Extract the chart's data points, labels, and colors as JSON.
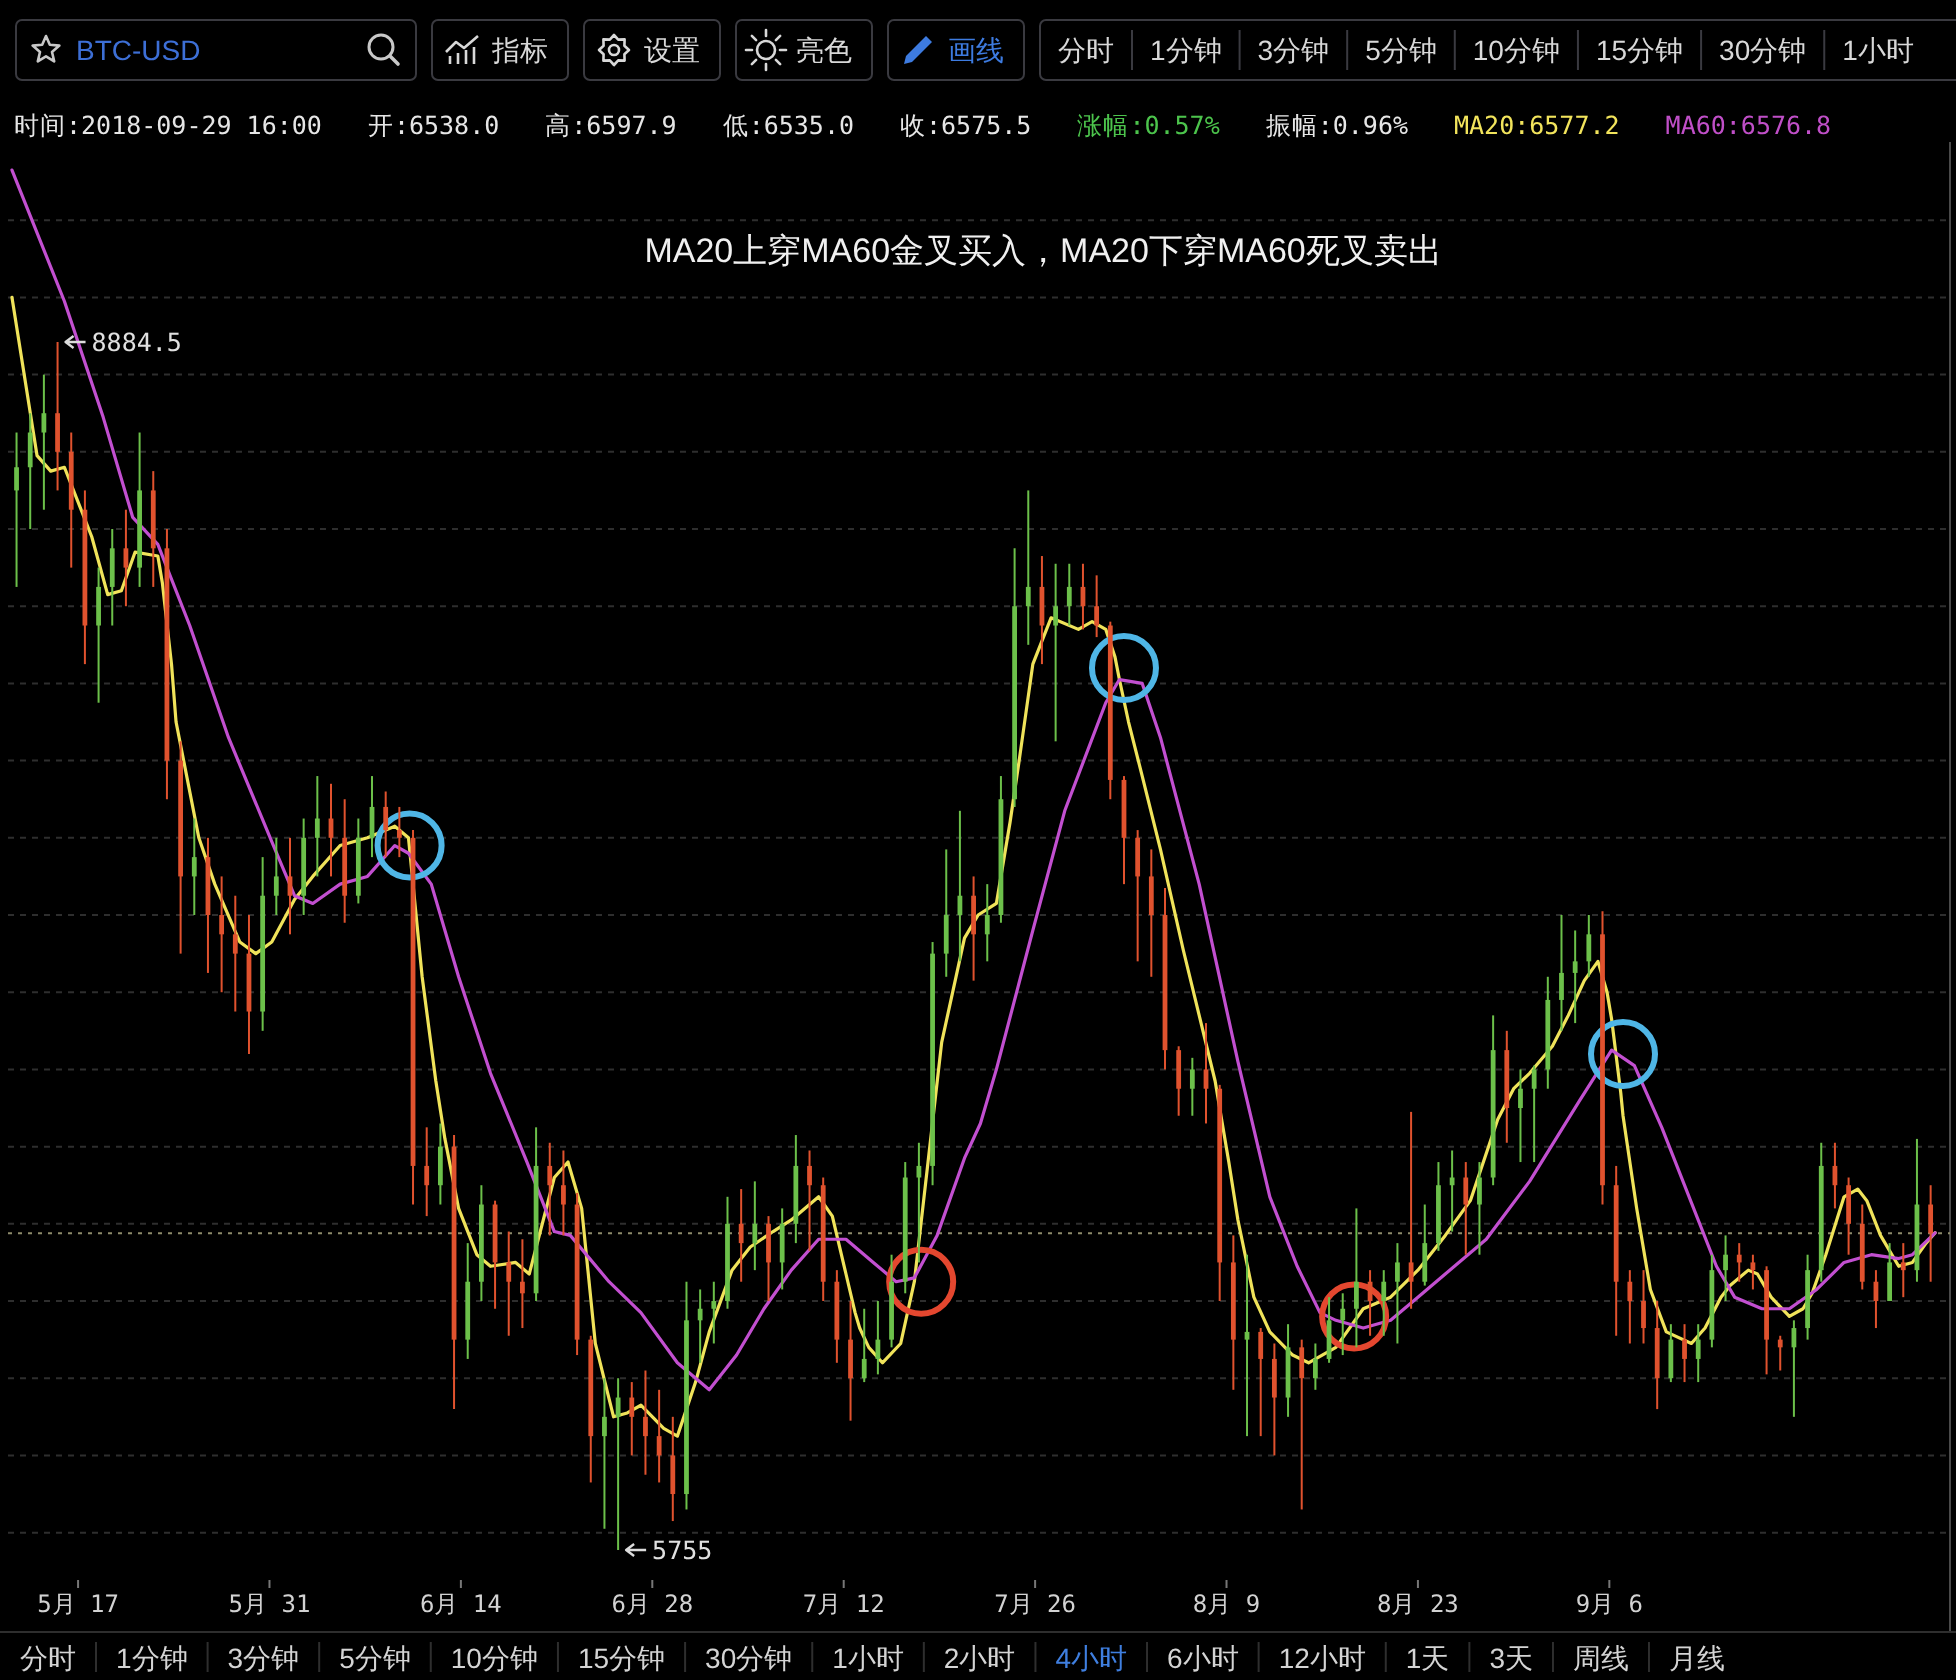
{
  "chart_data": [
    {
      "type": "other",
      "categories": [
        "BTC-USD",
        "指标",
        "设置",
        "亮色",
        "画线"
      ],
      "colors": [
        "#3d6fd6",
        "#d8d8d8",
        "#d8d8d8",
        "#d8d8d8",
        "#3d7be0"
      ]
    },
    {
      "type": "other",
      "categories": [
        "分时",
        "1分钟",
        "3分钟",
        "5分钟",
        "10分钟",
        "15分钟",
        "30分钟",
        "1小时"
      ],
      "colors": [
        "#d8d8d8",
        "#d8d8d8",
        "#d8d8d8",
        "#d8d8d8",
        "#d8d8d8",
        "#d8d8d8",
        "#d8d8d8",
        "#d8d8d8"
      ]
    },
    {
      "type": "other",
      "categories": [
        "时间:2018-09-29 16:00",
        "开:6538.0",
        "高:6597.9",
        "低:6535.0",
        "收:6575.5",
        "涨幅:0.57%",
        "振幅:0.96%",
        "MA20:6577.2",
        "MA60:6576.8"
      ],
      "colors": [
        "#e6e6e6",
        "#e6e6e6",
        "#e6e6e6",
        "#e6e6e6",
        "#e6e6e6",
        "#4cc44c",
        "#e6e6e6",
        "#f2e45c",
        "#c04fc8"
      ]
    },
    {
      "type": "candlestick",
      "title": "MA20上穿MA60金叉买入，MA20下穿MA60死叉卖出",
      "x": [
        "2018-05-12T12:00",
        "2018-05-13T12:00",
        "2018-05-14T12:00",
        "2018-05-15T12:00",
        "2018-05-16T12:00",
        "2018-05-17T12:00",
        "2018-05-18T12:00",
        "2018-05-19T12:00",
        "2018-05-20T12:00",
        "2018-05-21T12:00",
        "2018-05-22T12:00",
        "2018-05-23T12:00",
        "2018-05-24T12:00",
        "2018-05-25T12:00",
        "2018-05-26T12:00",
        "2018-05-27T12:00",
        "2018-05-28T12:00",
        "2018-05-29T12:00",
        "2018-05-30T12:00",
        "2018-05-31T12:00",
        "2018-06-01T12:00",
        "2018-06-02T12:00",
        "2018-06-03T12:00",
        "2018-06-04T12:00",
        "2018-06-05T12:00",
        "2018-06-06T12:00",
        "2018-06-07T12:00",
        "2018-06-08T12:00",
        "2018-06-09T12:00",
        "2018-06-10T12:00",
        "2018-06-11T12:00",
        "2018-06-12T12:00",
        "2018-06-13T12:00",
        "2018-06-14T12:00",
        "2018-06-15T12:00",
        "2018-06-16T12:00",
        "2018-06-17T12:00",
        "2018-06-18T12:00",
        "2018-06-19T12:00",
        "2018-06-20T12:00",
        "2018-06-21T12:00",
        "2018-06-22T12:00",
        "2018-06-23T12:00",
        "2018-06-24T12:00",
        "2018-06-25T12:00",
        "2018-06-26T12:00",
        "2018-06-27T12:00",
        "2018-06-28T12:00",
        "2018-06-29T12:00",
        "2018-06-30T12:00",
        "2018-07-01T12:00",
        "2018-07-02T12:00",
        "2018-07-03T12:00",
        "2018-07-04T12:00",
        "2018-07-05T12:00",
        "2018-07-06T12:00",
        "2018-07-07T12:00",
        "2018-07-08T12:00",
        "2018-07-09T12:00",
        "2018-07-10T12:00",
        "2018-07-11T12:00",
        "2018-07-12T12:00",
        "2018-07-13T12:00",
        "2018-07-14T12:00",
        "2018-07-15T12:00",
        "2018-07-16T12:00",
        "2018-07-17T12:00",
        "2018-07-18T12:00",
        "2018-07-19T12:00",
        "2018-07-20T12:00",
        "2018-07-21T12:00",
        "2018-07-22T12:00",
        "2018-07-23T12:00",
        "2018-07-24T12:00",
        "2018-07-25T12:00",
        "2018-07-26T12:00",
        "2018-07-27T12:00",
        "2018-07-28T12:00",
        "2018-07-29T12:00",
        "2018-07-30T12:00",
        "2018-07-31T12:00",
        "2018-08-01T12:00",
        "2018-08-02T12:00",
        "2018-08-03T12:00",
        "2018-08-04T12:00",
        "2018-08-05T12:00",
        "2018-08-06T12:00",
        "2018-08-07T12:00",
        "2018-08-08T12:00",
        "2018-08-09T12:00",
        "2018-08-10T12:00",
        "2018-08-11T12:00",
        "2018-08-12T12:00",
        "2018-08-13T12:00",
        "2018-08-14T12:00",
        "2018-08-15T12:00",
        "2018-08-16T12:00",
        "2018-08-17T12:00",
        "2018-08-18T12:00",
        "2018-08-19T12:00",
        "2018-08-20T12:00",
        "2018-08-21T12:00",
        "2018-08-22T12:00",
        "2018-08-23T12:00",
        "2018-08-24T12:00",
        "2018-08-25T12:00",
        "2018-08-26T12:00",
        "2018-08-27T12:00",
        "2018-08-28T12:00",
        "2018-08-29T12:00",
        "2018-08-30T12:00",
        "2018-08-31T12:00",
        "2018-09-01T12:00",
        "2018-09-02T12:00",
        "2018-09-03T12:00",
        "2018-09-04T12:00",
        "2018-09-05T12:00",
        "2018-09-06T12:00",
        "2018-09-07T12:00",
        "2018-09-08T12:00",
        "2018-09-09T12:00",
        "2018-09-10T12:00",
        "2018-09-11T12:00",
        "2018-09-12T12:00",
        "2018-09-13T12:00",
        "2018-09-14T12:00",
        "2018-09-15T12:00",
        "2018-09-16T12:00",
        "2018-09-17T12:00",
        "2018-09-18T12:00",
        "2018-09-19T12:00",
        "2018-09-20T12:00",
        "2018-09-21T12:00",
        "2018-09-22T12:00",
        "2018-09-23T12:00",
        "2018-09-24T12:00",
        "2018-09-25T12:00",
        "2018-09-26T12:00",
        "2018-09-27T12:00",
        "2018-09-28T12:00",
        "2018-09-29T12:00"
      ],
      "ohlc": [
        [
          8500,
          8650,
          8250,
          8560
        ],
        [
          8560,
          8700,
          8400,
          8650
        ],
        [
          8650,
          8800,
          8450,
          8700
        ],
        [
          8700,
          8884.5,
          8500,
          8600
        ],
        [
          8600,
          8650,
          8300,
          8450
        ],
        [
          8450,
          8500,
          8050,
          8150
        ],
        [
          8150,
          8300,
          7950,
          8250
        ],
        [
          8250,
          8400,
          8150,
          8350
        ],
        [
          8350,
          8450,
          8200,
          8300
        ],
        [
          8300,
          8650,
          8250,
          8500
        ],
        [
          8500,
          8550,
          8250,
          8350
        ],
        [
          8350,
          8400,
          7700,
          7800
        ],
        [
          7800,
          7850,
          7300,
          7500
        ],
        [
          7500,
          7650,
          7400,
          7550
        ],
        [
          7550,
          7600,
          7250,
          7400
        ],
        [
          7400,
          7500,
          7200,
          7350
        ],
        [
          7350,
          7450,
          7150,
          7300
        ],
        [
          7300,
          7400,
          7040,
          7150
        ],
        [
          7150,
          7550,
          7100,
          7450
        ],
        [
          7450,
          7600,
          7400,
          7500
        ],
        [
          7500,
          7600,
          7350,
          7450
        ],
        [
          7450,
          7650,
          7400,
          7600
        ],
        [
          7600,
          7760,
          7500,
          7650
        ],
        [
          7650,
          7740,
          7500,
          7600
        ],
        [
          7600,
          7700,
          7380,
          7450
        ],
        [
          7450,
          7650,
          7430,
          7600
        ],
        [
          7600,
          7760,
          7550,
          7680
        ],
        [
          7680,
          7720,
          7550,
          7620
        ],
        [
          7620,
          7680,
          7550,
          7600
        ],
        [
          7600,
          7620,
          6650,
          6750
        ],
        [
          6750,
          6850,
          6620,
          6700
        ],
        [
          6700,
          6860,
          6650,
          6800
        ],
        [
          6800,
          6830,
          6120,
          6300
        ],
        [
          6300,
          6550,
          6250,
          6450
        ],
        [
          6450,
          6700,
          6400,
          6650
        ],
        [
          6650,
          6660,
          6380,
          6500
        ],
        [
          6500,
          6580,
          6310,
          6450
        ],
        [
          6450,
          6560,
          6330,
          6420
        ],
        [
          6420,
          6850,
          6400,
          6750
        ],
        [
          6750,
          6810,
          6570,
          6700
        ],
        [
          6700,
          6790,
          6570,
          6650
        ],
        [
          6650,
          6680,
          6260,
          6300
        ],
        [
          6300,
          6310,
          5930,
          6050
        ],
        [
          6050,
          6200,
          5810,
          6100
        ],
        [
          6100,
          6200,
          5755,
          6150
        ],
        [
          6150,
          6190,
          6000,
          6100
        ],
        [
          6100,
          6220,
          5950,
          6050
        ],
        [
          6050,
          6170,
          5930,
          6000
        ],
        [
          6000,
          6100,
          5830,
          5900
        ],
        [
          5900,
          6450,
          5860,
          6350
        ],
        [
          6350,
          6430,
          6240,
          6380
        ],
        [
          6380,
          6450,
          6290,
          6400
        ],
        [
          6400,
          6670,
          6380,
          6600
        ],
        [
          6600,
          6690,
          6450,
          6550
        ],
        [
          6550,
          6710,
          6480,
          6600
        ],
        [
          6600,
          6620,
          6400,
          6500
        ],
        [
          6500,
          6640,
          6430,
          6600
        ],
        [
          6600,
          6830,
          6550,
          6750
        ],
        [
          6750,
          6790,
          6530,
          6700
        ],
        [
          6700,
          6720,
          6400,
          6450
        ],
        [
          6450,
          6480,
          6240,
          6300
        ],
        [
          6300,
          6400,
          6090,
          6200
        ],
        [
          6200,
          6380,
          6190,
          6250
        ],
        [
          6250,
          6400,
          6210,
          6300
        ],
        [
          6300,
          6520,
          6280,
          6450
        ],
        [
          6450,
          6760,
          6420,
          6720
        ],
        [
          6720,
          6810,
          6500,
          6750
        ],
        [
          6750,
          7330,
          6700,
          7300
        ],
        [
          7300,
          7570,
          7240,
          7400
        ],
        [
          7400,
          7670,
          7280,
          7450
        ],
        [
          7450,
          7500,
          7230,
          7350
        ],
        [
          7350,
          7480,
          7280,
          7400
        ],
        [
          7400,
          7760,
          7380,
          7700
        ],
        [
          7700,
          8350,
          7680,
          8200
        ],
        [
          8200,
          8500,
          8100,
          8250
        ],
        [
          8250,
          8330,
          8050,
          8150
        ],
        [
          8150,
          8310,
          7850,
          8200
        ],
        [
          8200,
          8310,
          8150,
          8250
        ],
        [
          8250,
          8310,
          8140,
          8200
        ],
        [
          8200,
          8280,
          8120,
          8150
        ],
        [
          8150,
          8160,
          7700,
          7750
        ],
        [
          7750,
          7760,
          7480,
          7600
        ],
        [
          7600,
          7620,
          7280,
          7500
        ],
        [
          7500,
          7570,
          7240,
          7400
        ],
        [
          7400,
          7470,
          7000,
          7050
        ],
        [
          7050,
          7060,
          6880,
          6950
        ],
        [
          6950,
          7030,
          6880,
          7000
        ],
        [
          7000,
          7120,
          6860,
          6950
        ],
        [
          6950,
          6960,
          6400,
          6500
        ],
        [
          6500,
          6570,
          6170,
          6300
        ],
        [
          6300,
          6520,
          6050,
          6320
        ],
        [
          6320,
          6330,
          6050,
          6250
        ],
        [
          6250,
          6290,
          6000,
          6150
        ],
        [
          6150,
          6340,
          6100,
          6280
        ],
        [
          6280,
          6300,
          5860,
          6200
        ],
        [
          6200,
          6290,
          6170,
          6250
        ],
        [
          6250,
          6410,
          6240,
          6350
        ],
        [
          6350,
          6420,
          6260,
          6380
        ],
        [
          6380,
          6640,
          6280,
          6450
        ],
        [
          6450,
          6480,
          6310,
          6400
        ],
        [
          6400,
          6480,
          6310,
          6450
        ],
        [
          6450,
          6550,
          6290,
          6500
        ],
        [
          6500,
          6890,
          6380,
          6450
        ],
        [
          6450,
          6650,
          6440,
          6550
        ],
        [
          6550,
          6760,
          6530,
          6700
        ],
        [
          6700,
          6790,
          6580,
          6720
        ],
        [
          6720,
          6760,
          6520,
          6650
        ],
        [
          6650,
          6760,
          6520,
          6720
        ],
        [
          6720,
          7140,
          6700,
          7050
        ],
        [
          7050,
          7100,
          6810,
          6900
        ],
        [
          6900,
          7000,
          6760,
          6950
        ],
        [
          6950,
          7010,
          6760,
          7000
        ],
        [
          7000,
          7240,
          6950,
          7180
        ],
        [
          7180,
          7400,
          7100,
          7250
        ],
        [
          7250,
          7360,
          7120,
          7280
        ],
        [
          7280,
          7400,
          7240,
          7350
        ],
        [
          7350,
          7410,
          6650,
          6700
        ],
        [
          6700,
          6750,
          6310,
          6450
        ],
        [
          6450,
          6480,
          6290,
          6400
        ],
        [
          6400,
          6480,
          6290,
          6330
        ],
        [
          6330,
          6400,
          6120,
          6200
        ],
        [
          6200,
          6340,
          6190,
          6300
        ],
        [
          6300,
          6340,
          6190,
          6250
        ],
        [
          6250,
          6340,
          6190,
          6300
        ],
        [
          6300,
          6520,
          6280,
          6480
        ],
        [
          6480,
          6570,
          6400,
          6520
        ],
        [
          6520,
          6550,
          6450,
          6500
        ],
        [
          6500,
          6520,
          6430,
          6480
        ],
        [
          6480,
          6490,
          6210,
          6300
        ],
        [
          6300,
          6310,
          6220,
          6280
        ],
        [
          6280,
          6350,
          6100,
          6330
        ],
        [
          6330,
          6520,
          6300,
          6480
        ],
        [
          6480,
          6810,
          6450,
          6750
        ],
        [
          6750,
          6810,
          6640,
          6700
        ],
        [
          6700,
          6720,
          6520,
          6600
        ],
        [
          6600,
          6650,
          6430,
          6450
        ],
        [
          6450,
          6480,
          6330,
          6400
        ],
        [
          6400,
          6550,
          6400,
          6500
        ],
        [
          6500,
          6550,
          6410,
          6480
        ],
        [
          6480,
          6820,
          6450,
          6650
        ],
        [
          6650,
          6700,
          6450,
          6575.5
        ]
      ],
      "colors": [
        "#6cc04a",
        "#6cc04a",
        "#6cc04a",
        "#e0522e",
        "#e0522e",
        "#e0522e",
        "#6cc04a",
        "#6cc04a",
        "#e0522e",
        "#6cc04a",
        "#e0522e",
        "#e0522e",
        "#e0522e",
        "#6cc04a",
        "#e0522e",
        "#e0522e",
        "#e0522e",
        "#e0522e",
        "#6cc04a",
        "#6cc04a",
        "#e0522e",
        "#6cc04a",
        "#6cc04a",
        "#e0522e",
        "#e0522e",
        "#6cc04a",
        "#6cc04a",
        "#e0522e",
        "#e0522e",
        "#e0522e",
        "#e0522e",
        "#6cc04a",
        "#e0522e",
        "#6cc04a",
        "#6cc04a",
        "#e0522e",
        "#e0522e",
        "#e0522e",
        "#6cc04a",
        "#e0522e",
        "#e0522e",
        "#e0522e",
        "#e0522e",
        "#6cc04a",
        "#6cc04a",
        "#e0522e",
        "#e0522e",
        "#e0522e",
        "#e0522e",
        "#6cc04a",
        "#6cc04a",
        "#6cc04a",
        "#6cc04a",
        "#e0522e",
        "#6cc04a",
        "#e0522e",
        "#6cc04a",
        "#6cc04a",
        "#e0522e",
        "#e0522e",
        "#e0522e",
        "#e0522e",
        "#6cc04a",
        "#6cc04a",
        "#6cc04a",
        "#6cc04a",
        "#6cc04a",
        "#6cc04a",
        "#6cc04a",
        "#6cc04a",
        "#e0522e",
        "#6cc04a",
        "#6cc04a",
        "#6cc04a",
        "#6cc04a",
        "#e0522e",
        "#6cc04a",
        "#6cc04a",
        "#e0522e",
        "#e0522e",
        "#e0522e",
        "#e0522e",
        "#e0522e",
        "#e0522e",
        "#e0522e",
        "#e0522e",
        "#6cc04a",
        "#e0522e",
        "#e0522e",
        "#e0522e",
        "#6cc04a",
        "#e0522e",
        "#e0522e",
        "#6cc04a",
        "#e0522e",
        "#6cc04a",
        "#6cc04a",
        "#6cc04a",
        "#6cc04a",
        "#e0522e",
        "#6cc04a",
        "#6cc04a",
        "#e0522e",
        "#6cc04a",
        "#6cc04a",
        "#6cc04a",
        "#e0522e",
        "#6cc04a",
        "#6cc04a",
        "#e0522e",
        "#6cc04a",
        "#6cc04a",
        "#6cc04a",
        "#6cc04a",
        "#6cc04a",
        "#6cc04a",
        "#e0522e",
        "#e0522e",
        "#e0522e",
        "#e0522e",
        "#e0522e",
        "#6cc04a",
        "#e0522e",
        "#6cc04a",
        "#6cc04a",
        "#6cc04a",
        "#e0522e",
        "#e0522e",
        "#e0522e",
        "#e0522e",
        "#6cc04a",
        "#6cc04a",
        "#6cc04a",
        "#e0522e",
        "#e0522e",
        "#e0522e",
        "#e0522e",
        "#6cc04a",
        "#e0522e",
        "#6cc04a",
        "#e0522e"
      ],
      "series": [
        {
          "type": "line",
          "color": "#f0e35a",
          "x": [
            "2018-05-12T04:00",
            "2018-05-14T00:00",
            "2018-05-15T00:00",
            "2018-05-16T00:00",
            "2018-05-18T00:00",
            "2018-05-19T04:00",
            "2018-05-20T04:00",
            "2018-05-21T04:00",
            "2018-05-22T20:00",
            "2018-05-23T04:00",
            "2018-05-23T20:00",
            "2018-05-24T04:00",
            "2018-05-25T20:00",
            "2018-05-27T00:00",
            "2018-05-28T20:00",
            "2018-05-30T00:00",
            "2018-05-31T04:00",
            "2018-06-01T20:00",
            "2018-06-03T04:00",
            "2018-06-05T04:00",
            "2018-06-07T04:00",
            "2018-06-09T04:00",
            "2018-06-10T04:00",
            "2018-06-11T04:00",
            "2018-06-12T04:00",
            "2018-06-12T20:00",
            "2018-06-13T20:00",
            "2018-06-15T04:00",
            "2018-06-16T04:00",
            "2018-06-18T00:00",
            "2018-06-19T00:00",
            "2018-06-20T20:00",
            "2018-06-21T20:00",
            "2018-06-22T20:00",
            "2018-06-23T20:00",
            "2018-06-25T04:00",
            "2018-06-26T04:00",
            "2018-06-27T04:00",
            "2018-06-28T20:00",
            "2018-06-29T20:00",
            "2018-07-01T04:00",
            "2018-07-02T04:00",
            "2018-07-03T20:00",
            "2018-07-05T04:00",
            "2018-07-06T20:00",
            "2018-07-08T04:00",
            "2018-07-10T04:00",
            "2018-07-11T04:00",
            "2018-07-12T04:00",
            "2018-07-12T20:00",
            "2018-07-13T04:00",
            "2018-07-13T20:00",
            "2018-07-14T20:00",
            "2018-07-16T04:00",
            "2018-07-17T04:00",
            "2018-07-18T04:00",
            "2018-07-19T04:00",
            "2018-07-20T20:00",
            "2018-07-21T20:00",
            "2018-07-23T04:00",
            "2018-07-24T04:00",
            "2018-07-24T20:00",
            "2018-07-25T20:00",
            "2018-07-27T04:00",
            "2018-07-29T04:00",
            "2018-07-30T04:00",
            "2018-07-31T04:00",
            "2018-07-31T20:00",
            "2018-08-01T04:00",
            "2018-08-01T20:00",
            "2018-08-02T20:00",
            "2018-08-04T04:00",
            "2018-08-05T20:00",
            "2018-08-07T00:00",
            "2018-08-08T04:00",
            "2018-08-09T04:00",
            "2018-08-09T20:00",
            "2018-08-11T00:00",
            "2018-08-12T04:00",
            "2018-08-13T20:00",
            "2018-08-15T00:00",
            "2018-08-17T00:00",
            "2018-08-19T00:00",
            "2018-08-21T00:00",
            "2018-08-23T00:00",
            "2018-08-25T00:00",
            "2018-08-26T20:00",
            "2018-08-28T20:00",
            "2018-08-30T00:00",
            "2018-08-31T04:00",
            "2018-09-01T20:00",
            "2018-09-03T00:00",
            "2018-09-04T04:00",
            "2018-09-05T04:00",
            "2018-09-05T20:00",
            "2018-09-06T04:00",
            "2018-09-06T20:00",
            "2018-09-07T00:00",
            "2018-09-08T00:00",
            "2018-09-09T00:00",
            "2018-09-10T04:00",
            "2018-09-12T00:00",
            "2018-09-13T00:00",
            "2018-09-14T04:00",
            "2018-09-14T20:00",
            "2018-09-16T04:00",
            "2018-09-16T20:00",
            "2018-09-17T20:00",
            "2018-09-19T04:00",
            "2018-09-20T04:00",
            "2018-09-20T20:00",
            "2018-09-21T20:00",
            "2018-09-23T04:00",
            "2018-09-24T04:00",
            "2018-09-24T20:00",
            "2018-09-25T20:00",
            "2018-09-27T04:00",
            "2018-09-28T04:00",
            "2018-09-29T04:00",
            "2018-09-29T20:00"
          ],
          "values": [
            9000,
            8590,
            8550,
            8560,
            8380,
            8230,
            8240,
            8340,
            8330,
            8260,
            8050,
            7900,
            7600,
            7480,
            7330,
            7300,
            7330,
            7440,
            7500,
            7580,
            7600,
            7630,
            7600,
            7240,
            6970,
            6820,
            6640,
            6520,
            6490,
            6500,
            6470,
            6720,
            6760,
            6640,
            6290,
            6100,
            6110,
            6130,
            6070,
            6050,
            6190,
            6320,
            6480,
            6540,
            6580,
            6610,
            6670,
            6620,
            6470,
            6370,
            6330,
            6280,
            6240,
            6290,
            6450,
            6760,
            7070,
            7340,
            7400,
            7430,
            7640,
            7800,
            8050,
            8170,
            8140,
            8160,
            8140,
            8070,
            8010,
            7900,
            7760,
            7570,
            7310,
            7140,
            6970,
            6760,
            6610,
            6410,
            6320,
            6260,
            6240,
            6280,
            6380,
            6410,
            6480,
            6570,
            6660,
            6870,
            6950,
            6990,
            7060,
            7140,
            7230,
            7280,
            7200,
            7130,
            6940,
            6880,
            6640,
            6430,
            6320,
            6290,
            6330,
            6410,
            6440,
            6480,
            6470,
            6410,
            6360,
            6380,
            6420,
            6520,
            6670,
            6690,
            6660,
            6570,
            6490,
            6500,
            6550,
            6577.2
          ]
        },
        {
          "type": "line",
          "color": "#c24fd0",
          "x": [
            "2018-05-12T04:00",
            "2018-05-16T00:00",
            "2018-05-18T20:00",
            "2018-05-21T00:00",
            "2018-05-22T20:00",
            "2018-05-25T04:00",
            "2018-05-28T00:00",
            "2018-05-31T04:00",
            "2018-06-01T20:00",
            "2018-06-03T04:00",
            "2018-06-05T04:00",
            "2018-06-07T04:00",
            "2018-06-09T04:00",
            "2018-06-10T04:00",
            "2018-06-11T20:00",
            "2018-06-13T20:00",
            "2018-06-16T04:00",
            "2018-06-18T20:00",
            "2018-06-20T20:00",
            "2018-06-22T00:00",
            "2018-06-24T20:00",
            "2018-06-27T04:00",
            "2018-06-29T20:00",
            "2018-07-02T04:00",
            "2018-07-04T04:00",
            "2018-07-06T04:00",
            "2018-07-08T04:00",
            "2018-07-10T04:00",
            "2018-07-12T04:00",
            "2018-07-14T04:00",
            "2018-07-15T20:00",
            "2018-07-17T04:00",
            "2018-07-18T20:00",
            "2018-07-20T20:00",
            "2018-07-22T00:00",
            "2018-07-23T04:00",
            "2018-07-25T20:00",
            "2018-07-28T04:00",
            "2018-07-31T04:00",
            "2018-08-01T04:00",
            "2018-08-02T20:00",
            "2018-08-04T04:00",
            "2018-08-07T00:00",
            "2018-08-09T20:00",
            "2018-08-12T04:00",
            "2018-08-14T04:00",
            "2018-08-15T20:00",
            "2018-08-17T00:00",
            "2018-08-19T00:00",
            "2018-08-21T00:00",
            "2018-08-23T00:00",
            "2018-08-25T00:00",
            "2018-08-28T00:00",
            "2018-08-31T04:00",
            "2018-09-03T20:00",
            "2018-09-06T04:00",
            "2018-09-07T20:00",
            "2018-09-09T20:00",
            "2018-09-11T20:00",
            "2018-09-13T20:00",
            "2018-09-15T04:00",
            "2018-09-17T04:00",
            "2018-09-19T04:00",
            "2018-09-21T04:00",
            "2018-09-23T04:00",
            "2018-09-25T04:00",
            "2018-09-27T04:00",
            "2018-09-28T04:00",
            "2018-09-29T20:00"
          ],
          "values": [
            9330,
            8990,
            8690,
            8430,
            8360,
            8150,
            7860,
            7590,
            7450,
            7430,
            7480,
            7500,
            7580,
            7560,
            7480,
            7240,
            6990,
            6760,
            6580,
            6570,
            6450,
            6370,
            6240,
            6170,
            6260,
            6380,
            6480,
            6560,
            6560,
            6500,
            6450,
            6460,
            6570,
            6770,
            6860,
            7000,
            7360,
            7670,
            7950,
            8010,
            8000,
            7860,
            7480,
            7020,
            6670,
            6490,
            6370,
            6350,
            6330,
            6350,
            6410,
            6470,
            6560,
            6710,
            6920,
            7050,
            7010,
            6850,
            6670,
            6490,
            6410,
            6380,
            6380,
            6430,
            6500,
            6520,
            6510,
            6520,
            6576.8
          ]
        },
        {
          "type": "scatter",
          "color": "#4fb6e6",
          "marker": "circle",
          "x": [
            "2018-06-10T06:00",
            "2018-08-01T12:00",
            "2018-09-07T00:00"
          ],
          "values": [
            7580,
            8040,
            7040
          ]
        },
        {
          "type": "scatter",
          "color": "#e4472f",
          "marker": "circle",
          "x": [
            "2018-07-17T16:00",
            "2018-08-18T08:00"
          ],
          "values": [
            6450,
            6360
          ]
        }
      ],
      "xlim": [
        "2018-05-11T21:00",
        "2018-09-30T22:00"
      ],
      "xticks": [
        {
          "value": "2018-05-17",
          "label": "5月 17"
        },
        {
          "value": "2018-05-31",
          "label": "5月 31"
        },
        {
          "value": "2018-06-14",
          "label": "6月 14"
        },
        {
          "value": "2018-06-28",
          "label": "6月 28"
        },
        {
          "value": "2018-07-12",
          "label": "7月 12"
        },
        {
          "value": "2018-07-26",
          "label": "7月 26"
        },
        {
          "value": "2018-08-09",
          "label": "8月 9"
        },
        {
          "value": "2018-08-23",
          "label": "8月 23"
        },
        {
          "value": "2018-09-06",
          "label": "9月 6"
        }
      ],
      "yticks": [
        {
          "value": 5800,
          "label": null
        },
        {
          "value": 6000,
          "label": null
        },
        {
          "value": 6200,
          "label": null
        },
        {
          "value": 6400,
          "label": null
        },
        {
          "value": 6600,
          "label": null
        },
        {
          "value": 6800,
          "label": null
        },
        {
          "value": 7000,
          "label": null
        },
        {
          "value": 7200,
          "label": null
        },
        {
          "value": 7400,
          "label": null
        },
        {
          "value": 7600,
          "label": null
        },
        {
          "value": 7800,
          "label": null
        },
        {
          "value": 8000,
          "label": null
        },
        {
          "value": 8200,
          "label": null
        },
        {
          "value": 8400,
          "label": null
        },
        {
          "value": 8600,
          "label": null
        },
        {
          "value": 8800,
          "label": null
        },
        {
          "value": 9000,
          "label": null
        },
        {
          "value": 9200,
          "label": null
        }
      ],
      "tick_labels": "x",
      "grid": "y",
      "ref_lines": [
        {
          "axis": "y",
          "value": 6575.5,
          "color": "#8e8c6c",
          "line_style": "dotted"
        }
      ],
      "annotations": [
        {
          "text": "8884.5",
          "x": "2018-05-15T12:00",
          "y": 8884.5
        },
        {
          "text": "5755",
          "x": "2018-06-25T12:00",
          "y": 5755
        }
      ]
    },
    {
      "type": "other",
      "categories": [
        "分时",
        "1分钟",
        "3分钟",
        "5分钟",
        "10分钟",
        "15分钟",
        "30分钟",
        "1小时",
        "2小时",
        "4小时",
        "6小时",
        "12小时",
        "1天",
        "3天",
        "周线",
        "月线"
      ],
      "colors": [
        "#d4d4d4",
        "#d4d4d4",
        "#d4d4d4",
        "#d4d4d4",
        "#d4d4d4",
        "#d4d4d4",
        "#d4d4d4",
        "#d4d4d4",
        "#d4d4d4",
        "#3f7fe0",
        "#d4d4d4",
        "#d4d4d4",
        "#d4d4d4",
        "#d4d4d4",
        "#d4d4d4",
        "#d4d4d4"
      ]
    }
  ]
}
